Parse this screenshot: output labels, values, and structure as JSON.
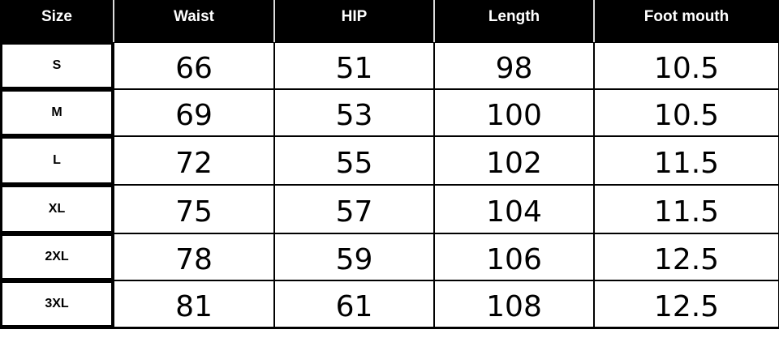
{
  "table": {
    "headers": [
      "Size",
      "Waist",
      "HIP",
      "Length",
      "Foot mouth"
    ],
    "rows": [
      [
        "S",
        "66",
        "51",
        "98",
        "10.5"
      ],
      [
        "M",
        "69",
        "53",
        "100",
        "10.5"
      ],
      [
        "L",
        "72",
        "55",
        "102",
        "11.5"
      ],
      [
        "XL",
        "75",
        "57",
        "104",
        "11.5"
      ],
      [
        "2XL",
        "78",
        "59",
        "106",
        "12.5"
      ],
      [
        "3XL",
        "81",
        "61",
        "108",
        "12.5"
      ]
    ]
  }
}
